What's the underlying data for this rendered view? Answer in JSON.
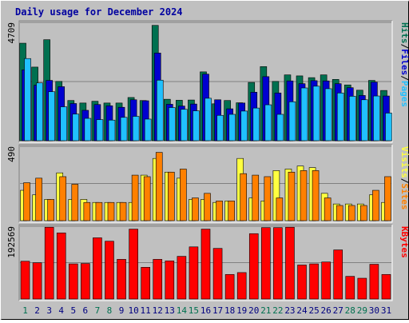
{
  "chart_data": {
    "type": "bar",
    "title": "Daily usage for December 2024",
    "categories": [
      "1",
      "2",
      "3",
      "4",
      "5",
      "6",
      "7",
      "8",
      "9",
      "10",
      "11",
      "12",
      "13",
      "14",
      "15",
      "16",
      "17",
      "18",
      "19",
      "20",
      "21",
      "22",
      "23",
      "24",
      "25",
      "26",
      "27",
      "28",
      "29",
      "30",
      "31"
    ],
    "weekend_days": [
      "1",
      "7",
      "8",
      "14",
      "15",
      "21",
      "22",
      "28",
      "29"
    ],
    "grid": true,
    "colors": {
      "background": "#c0c0c0",
      "title": "#0000a0",
      "hits": "#007050",
      "files": "#0000d0",
      "pages": "#20c0ff",
      "visits": "#ffff40",
      "sites": "#ff8000",
      "kbytes": "#ff0000",
      "weekend_label": "#007050",
      "weekday_label": "#000080"
    },
    "panels": [
      {
        "name": "hits-files-pages",
        "ymax_label": "4709",
        "ymax": 4709,
        "axis_labels": [
          {
            "text": "Hits",
            "color": "#007050"
          },
          {
            "text": "/",
            "color": "#000000"
          },
          {
            "text": "Files",
            "color": "#0000d0"
          },
          {
            "text": "/",
            "color": "#000000"
          },
          {
            "text": "Pages",
            "color": "#20c0ff"
          }
        ],
        "series": [
          {
            "key": "hits",
            "values": [
              3880,
              2930,
              4020,
              2360,
              1600,
              1500,
              1570,
              1500,
              1500,
              1720,
              1600,
              4590,
              1650,
              1610,
              1620,
              2740,
              1470,
              1600,
              1510,
              2320,
              2950,
              2360,
              2620,
              2580,
              2510,
              2620,
              2440,
              2220,
              2010,
              2400,
              2000
            ]
          },
          {
            "key": "files",
            "values": [
              2820,
              2210,
              2400,
              2150,
              1480,
              1210,
              1440,
              1390,
              1330,
              1630,
              1590,
              3490,
              1450,
              1380,
              1460,
              2650,
              1630,
              1270,
              1500,
              1930,
              2550,
              1900,
              2380,
              2270,
              2390,
              2380,
              2270,
              2110,
              1800,
              2330,
              1780
            ]
          },
          {
            "key": "pages",
            "values": [
              3270,
              2300,
              1950,
              1350,
              1060,
              890,
              840,
              820,
              930,
              970,
              860,
              2410,
              1320,
              1250,
              1190,
              1690,
              1010,
              1050,
              1180,
              1300,
              1430,
              1050,
              1550,
              2100,
              2170,
              2070,
              1900,
              1770,
              1630,
              1780,
              1100
            ]
          }
        ]
      },
      {
        "name": "visits-sites",
        "ymax_label": "490",
        "ymax": 490,
        "axis_labels": [
          {
            "text": "Visits",
            "color": "#ffff40"
          },
          {
            "text": "/",
            "color": "#000000"
          },
          {
            "text": "Sites",
            "color": "#ff8000"
          }
        ],
        "series": [
          {
            "key": "visits",
            "values": [
              200,
              170,
              140,
              315,
              140,
              140,
              120,
              120,
              120,
              120,
              300,
              410,
              320,
              280,
              140,
              140,
              120,
              130,
              410,
              150,
              130,
              330,
              340,
              360,
              350,
              180,
              110,
              110,
              110,
              170,
              120
            ]
          },
          {
            "key": "sites",
            "values": [
              250,
              280,
              140,
              290,
              240,
              120,
              120,
              120,
              120,
              300,
              290,
              450,
              320,
              340,
              150,
              180,
              130,
              130,
              310,
              300,
              290,
              150,
              320,
              330,
              330,
              150,
              100,
              100,
              100,
              200,
              290
            ]
          }
        ]
      },
      {
        "name": "kbytes",
        "ymax_label": "192569",
        "ymax": 192569,
        "axis_labels": [
          {
            "text": "KBytes",
            "color": "#ff0000"
          }
        ],
        "series": [
          {
            "key": "kbytes",
            "values": [
              100000,
              96000,
              190000,
              175000,
              93000,
              94000,
              162000,
              153000,
              105000,
              185000,
              84000,
              105000,
              101000,
              113000,
              138000,
              185000,
              134000,
              65000,
              70000,
              173000,
              189000,
              189000,
              190000,
              90000,
              93000,
              98000,
              130000,
              60000,
              55000,
              92000,
              65000
            ]
          }
        ]
      }
    ]
  }
}
